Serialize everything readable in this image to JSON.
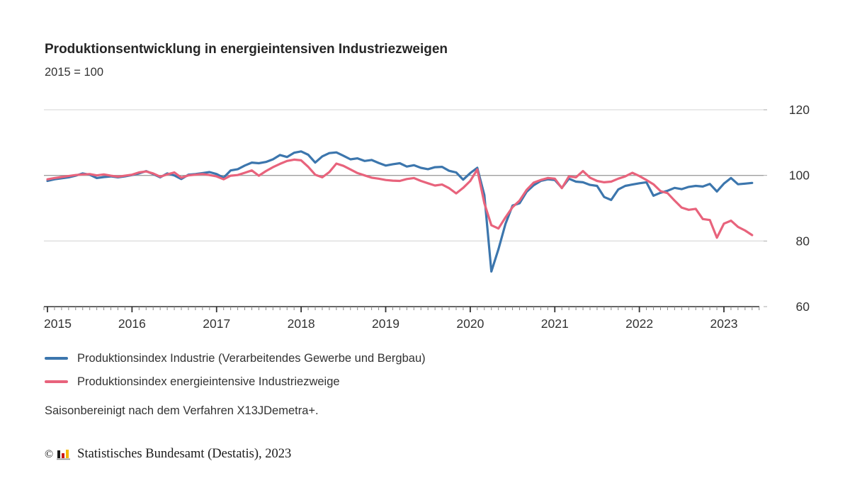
{
  "title": "Produktionsentwicklung in energieintensiven Industriezweigen",
  "subtitle": "2015 = 100",
  "footnote": "Saisonbereinigt nach dem Verfahren X13JDemetra+.",
  "copyright": {
    "symbol": "©",
    "text": "Statistisches Bundesamt (Destatis), 2023",
    "logo_bar_colors": [
      "#1a1a1a",
      "#cc1719",
      "#f5b800"
    ],
    "logo_base_color": "#999999"
  },
  "colors": {
    "grid_light": "#dddddd",
    "grid_reference": "#9e9e9e",
    "axis": "#333333",
    "tick_minor": "#888888",
    "tick_major": "#333333",
    "label_text": "#333333"
  },
  "chart_data": {
    "type": "line",
    "title": "Produktionsentwicklung in energieintensiven Industriezweigen",
    "subtitle": "2015 = 100",
    "x_unit": "month",
    "x_start": "2015-01",
    "x_end": "2023-05",
    "year_tick_labels": [
      "2015",
      "2016",
      "2017",
      "2018",
      "2019",
      "2020",
      "2021",
      "2022",
      "2023"
    ],
    "ylim": [
      60,
      120
    ],
    "y_ticks": [
      60,
      80,
      100,
      120
    ],
    "reference_line": 100,
    "grid": "horizontal",
    "legend_position": "bottom-left",
    "series": [
      {
        "name": "Produktionsindex Industrie (Verarbeitendes Gewerbe und Bergbau)",
        "color": "#3c76ad",
        "values": [
          98.3,
          98.8,
          99.1,
          99.4,
          99.9,
          100.6,
          100.2,
          99.2,
          99.5,
          99.7,
          99.4,
          99.7,
          100.1,
          100.6,
          101.3,
          100.4,
          99.4,
          100.6,
          100.0,
          98.9,
          100.2,
          100.4,
          100.7,
          101.0,
          100.4,
          99.3,
          101.5,
          101.9,
          103.0,
          103.9,
          103.7,
          104.1,
          104.9,
          106.2,
          105.6,
          106.9,
          107.3,
          106.3,
          103.9,
          105.8,
          106.8,
          107.0,
          106.0,
          104.9,
          105.2,
          104.4,
          104.7,
          103.8,
          103.0,
          103.4,
          103.7,
          102.7,
          103.1,
          102.3,
          101.9,
          102.5,
          102.6,
          101.4,
          100.9,
          98.7,
          100.7,
          102.3,
          94.0,
          70.7,
          77.5,
          85.2,
          90.8,
          91.5,
          95.0,
          97.0,
          98.3,
          98.8,
          98.6,
          96.2,
          99.0,
          98.1,
          97.9,
          97.1,
          96.8,
          93.4,
          92.5,
          95.7,
          96.8,
          97.2,
          97.6,
          97.9,
          93.8,
          94.7,
          95.3,
          96.2,
          95.8,
          96.5,
          96.8,
          96.6,
          97.4,
          95.1,
          97.5,
          99.2,
          97.3,
          97.5,
          97.7
        ]
      },
      {
        "name": "Produktionsindex energieintensive Industriezweige",
        "color": "#e8637c",
        "values": [
          98.8,
          99.2,
          99.5,
          99.8,
          100.1,
          100.3,
          100.4,
          100.0,
          100.3,
          99.9,
          99.6,
          99.9,
          100.2,
          100.9,
          101.2,
          100.6,
          99.6,
          100.3,
          100.9,
          99.3,
          100.0,
          100.2,
          100.4,
          100.1,
          99.7,
          98.8,
          99.9,
          100.1,
          100.8,
          101.5,
          99.9,
          101.3,
          102.5,
          103.5,
          104.4,
          104.8,
          104.6,
          102.6,
          100.2,
          99.4,
          101.0,
          103.6,
          102.9,
          101.8,
          100.7,
          100.0,
          99.3,
          99.0,
          98.6,
          98.4,
          98.3,
          98.9,
          99.2,
          98.3,
          97.6,
          96.9,
          97.2,
          96.1,
          94.5,
          96.2,
          98.3,
          101.8,
          91.5,
          84.8,
          83.8,
          87.2,
          90.3,
          92.3,
          95.6,
          97.8,
          98.6,
          99.2,
          99.0,
          96.1,
          99.7,
          99.4,
          101.3,
          99.3,
          98.3,
          97.9,
          98.1,
          99.0,
          99.7,
          100.8,
          99.8,
          98.6,
          97.3,
          95.2,
          94.6,
          92.3,
          90.2,
          89.5,
          89.8,
          86.7,
          86.4,
          81.0,
          85.3,
          86.2,
          84.3,
          83.2,
          81.8
        ]
      }
    ]
  }
}
